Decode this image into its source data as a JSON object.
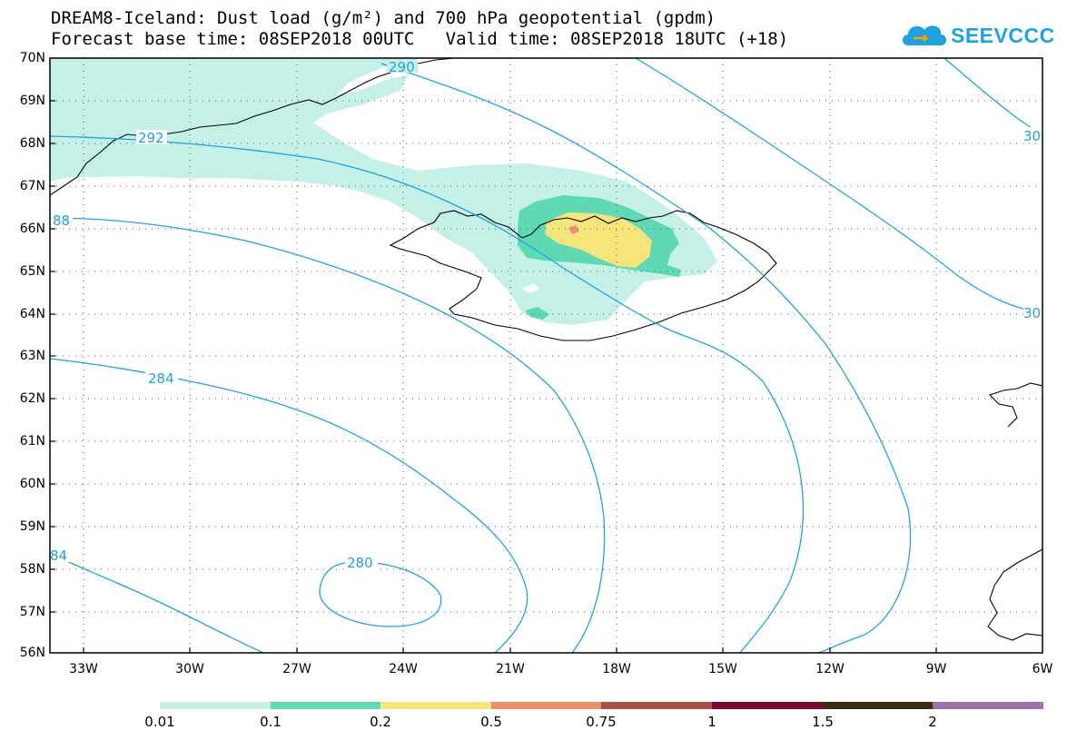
{
  "header": {
    "title_line1": "DREAM8-Iceland: Dust load (g/m²) and 700 hPa geopotential (gpdm)",
    "title_line2": "Forecast base time: 08SEP2018 00UTC   Valid time: 08SEP2018 18UTC (+18)"
  },
  "logo": {
    "text": "SEEVCCC",
    "icon": "cloud-icon",
    "color": "#1fa3e0"
  },
  "map": {
    "lat_labels": [
      "70N",
      "69N",
      "68N",
      "67N",
      "66N",
      "65N",
      "64N",
      "63N",
      "62N",
      "61N",
      "60N",
      "59N",
      "58N",
      "57N",
      "56N"
    ],
    "lon_labels": [
      "33W",
      "30W",
      "27W",
      "24W",
      "21W",
      "18W",
      "15W",
      "12W",
      "9W",
      "6W"
    ],
    "contour_color": "#1fa3e0",
    "contour_labels": [
      {
        "text": "292"
      },
      {
        "text": "290"
      },
      {
        "text": "88"
      },
      {
        "text": "284"
      },
      {
        "text": "84"
      },
      {
        "text": "280"
      },
      {
        "text": "30"
      },
      {
        "text": "30"
      }
    ]
  },
  "colorbar": {
    "colors": [
      "#c4f0e8",
      "#5ed9b4",
      "#f6e57a",
      "#e99070",
      "#a8504c",
      "#7c0a30",
      "#3a2a16",
      "#9c70a8"
    ],
    "labels": [
      "0.01",
      "0.1",
      "0.2",
      "0.5",
      "0.75",
      "1",
      "1.5",
      "2"
    ]
  }
}
